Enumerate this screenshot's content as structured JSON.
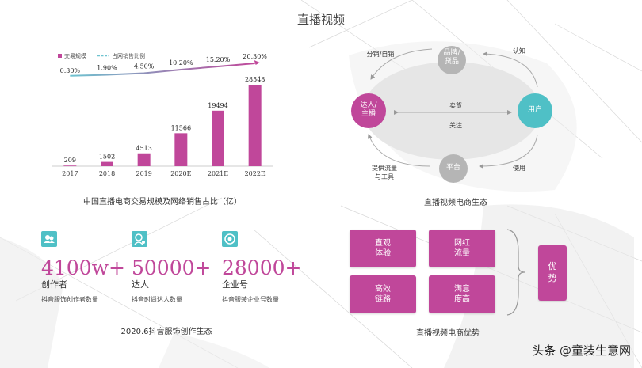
{
  "page": {
    "title": "直播视频"
  },
  "chart_data": {
    "type": "bar",
    "categories": [
      "2017",
      "2018",
      "2019",
      "2020E",
      "2021E",
      "2022E"
    ],
    "series": [
      {
        "name": "交易规模",
        "values": [
          209,
          1502,
          4513,
          11566,
          19494,
          28548
        ],
        "color": "#c0479a"
      },
      {
        "name": "占网销售比例",
        "values": [
          0.3,
          1.9,
          4.5,
          10.2,
          15.2,
          20.3
        ],
        "value_labels": [
          "0.30%",
          "1.90%",
          "4.50%",
          "10.20%",
          "15.20%",
          "20.30%"
        ],
        "color": "#6ec3d0"
      }
    ],
    "title": "中国直播电商交易规模及网络销售占比（亿）",
    "ylim": [
      0,
      30000
    ],
    "legend": "top-left"
  },
  "stats": {
    "items": [
      {
        "icon": "creators-icon",
        "number": "4100w+",
        "label": "创作者",
        "sub": "抖音服饰创作者数量"
      },
      {
        "icon": "influencer-icon",
        "number": "50000+",
        "label": "达人",
        "sub": "抖音时尚达人数量"
      },
      {
        "icon": "enterprise-icon",
        "number": "28000+",
        "label": "企业号",
        "sub": "抖音服装企业号数量"
      }
    ],
    "caption": "2020.6抖音服饰创作生态"
  },
  "ecosystem": {
    "title": "直播视频电商生态",
    "nodes": {
      "brand": "品牌/\n货品",
      "talent": "达人/\n主播",
      "user": "用户",
      "platform": "平台"
    },
    "labels": {
      "distribution": "分销/自销",
      "recognition": "认知",
      "selling": "卖货",
      "follow": "关注",
      "traffic": "提供流量\n与工具",
      "usage": "使用"
    }
  },
  "advantages": {
    "title": "直播视频电商优势",
    "items": [
      "直观\n体验",
      "网红\n流量",
      "高效\n链路",
      "满意\n度高"
    ],
    "summary": "优\n势"
  },
  "watermark": "头条 @童装生意网",
  "colors": {
    "accent": "#c0479a",
    "teal": "#4fc0c6",
    "gray_node": "#b5b5b5",
    "ellipse": "#e6e6e6"
  }
}
